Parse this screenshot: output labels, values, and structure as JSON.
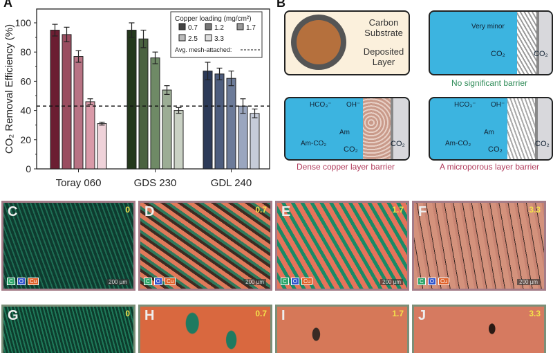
{
  "panel_labels": {
    "a": "A",
    "b": "B",
    "c": "C",
    "d": "D",
    "e": "E",
    "f": "F",
    "g": "G",
    "h": "H",
    "i": "I",
    "j": "J"
  },
  "chart_data": {
    "type": "bar",
    "ylabel": "CO₂ Removal Efficiency (%)",
    "xlabel": "",
    "ylim": [
      0,
      110
    ],
    "yticks": [
      0,
      20,
      40,
      60,
      80,
      100
    ],
    "categories": [
      "Toray 060",
      "GDS 230",
      "GDL 240"
    ],
    "legend": {
      "title": "Copper loading (mg/cm²)",
      "position": "top-right",
      "reference_label": "Avg. mesh-attached:"
    },
    "series": [
      {
        "name": "0.7",
        "values": [
          95,
          95,
          67
        ],
        "errors": [
          4,
          5,
          6
        ]
      },
      {
        "name": "1.2",
        "values": [
          92,
          89,
          65
        ],
        "errors": [
          5,
          6,
          4
        ]
      },
      {
        "name": "1.7",
        "values": [
          77,
          76,
          62
        ],
        "errors": [
          4,
          4,
          5
        ]
      },
      {
        "name": "2.5",
        "values": [
          46,
          54,
          43
        ],
        "errors": [
          2,
          3,
          5
        ]
      },
      {
        "name": "3.3",
        "values": [
          31,
          40,
          38
        ],
        "errors": [
          1,
          2,
          3
        ]
      }
    ],
    "reference_line": 43,
    "colors": {
      "Toray 060": [
        "#6b1e32",
        "#9a4d60",
        "#b87384",
        "#d99aa8",
        "#efd2d9"
      ],
      "GDS 230": [
        "#24381c",
        "#4a6240",
        "#6f8a66",
        "#9cad95",
        "#c9d1c4"
      ],
      "GDL 240": [
        "#2c3a58",
        "#4d5d7e",
        "#6c7b99",
        "#9aa6bf",
        "#c6ccd9"
      ],
      "legend": [
        "#444",
        "#777",
        "#999",
        "#bbb",
        "#ddd"
      ]
    }
  },
  "panel_b": {
    "substrate_label": "Carbon Substrate",
    "deposit_label": "Deposited Layer",
    "very_minor": "Very minor",
    "co2": "CO₂",
    "hco3": "HCO₃⁻",
    "oh": "OH⁻",
    "am": "Am",
    "am_co2": "Am-CO₂",
    "caption_none": "No significant barrier",
    "caption_dense": "Dense copper layer barrier",
    "caption_micro": "A microporous layer barrier",
    "colors": {
      "electrolyte": "#3cb4e0",
      "none_caption": "#2e8b57",
      "barrier_caption": "#b03a5b"
    }
  },
  "sem": {
    "loadings": [
      "0",
      "0.7",
      "1.7",
      "3.3"
    ],
    "legend": [
      "C",
      "O",
      "Cu"
    ],
    "scale_bar": "200 µm"
  }
}
